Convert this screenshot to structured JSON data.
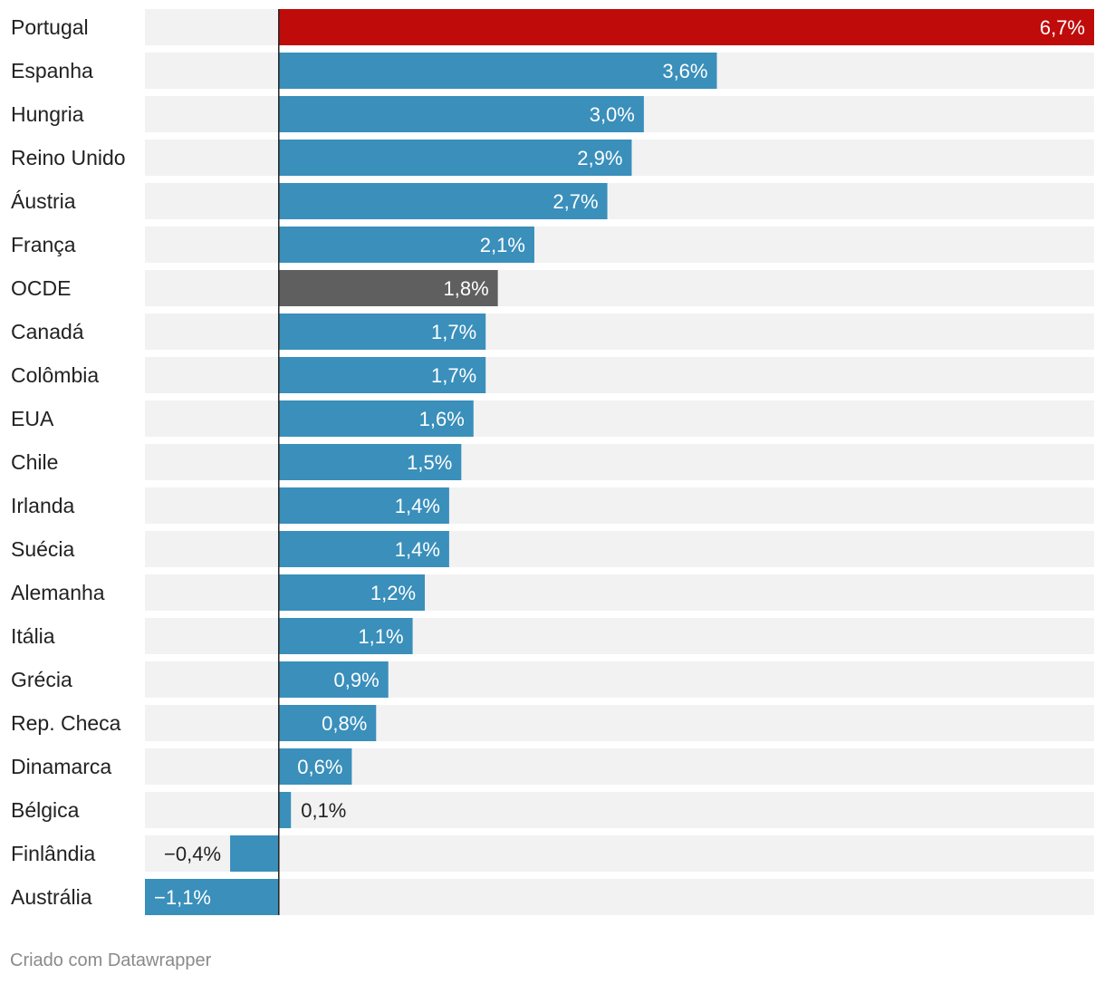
{
  "chart_data": {
    "type": "bar",
    "orientation": "horizontal",
    "categories": [
      "Portugal",
      "Espanha",
      "Hungria",
      "Reino Unido",
      "Áustria",
      "França",
      "OCDE",
      "Canadá",
      "Colômbia",
      "EUA",
      "Chile",
      "Irlanda",
      "Suécia",
      "Alemanha",
      "Itália",
      "Grécia",
      "Rep. Checa",
      "Dinamarca",
      "Bélgica",
      "Finlândia",
      "Austrália"
    ],
    "values": [
      6.7,
      3.6,
      3.0,
      2.9,
      2.7,
      2.1,
      1.8,
      1.7,
      1.7,
      1.6,
      1.5,
      1.4,
      1.4,
      1.2,
      1.1,
      0.9,
      0.8,
      0.6,
      0.1,
      -0.4,
      -1.1
    ],
    "value_labels": [
      "6,7%",
      "3,6%",
      "3,0%",
      "2,9%",
      "2,7%",
      "2,1%",
      "1,8%",
      "1,7%",
      "1,7%",
      "1,6%",
      "1,5%",
      "1,4%",
      "1,4%",
      "1,2%",
      "1,1%",
      "0,9%",
      "0,8%",
      "0,6%",
      "0,1%",
      "−0,4%",
      "−1,1%"
    ],
    "highlight": {
      "Portugal": "#c00b0b",
      "OCDE": "#5f5f5f"
    },
    "colors": {
      "default": "#3a8fbb",
      "background_band": "#f2f2f2",
      "zero_line": "#222222"
    },
    "xlim": [
      -1.1,
      6.7
    ],
    "title": "",
    "xlabel": "",
    "ylabel": ""
  },
  "footer": {
    "credit": "Criado com Datawrapper"
  }
}
